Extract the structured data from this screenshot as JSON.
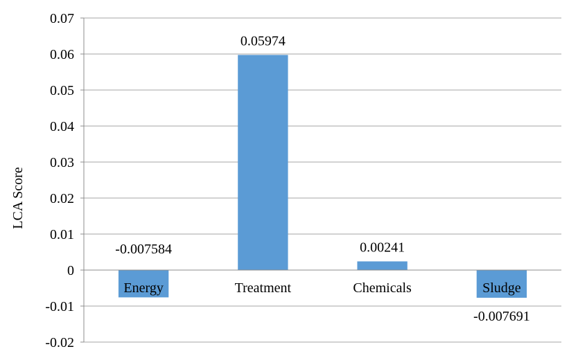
{
  "chart_data": {
    "type": "bar",
    "title": "",
    "xlabel": "",
    "ylabel": "LCA Score",
    "ylim": [
      -0.02,
      0.07
    ],
    "yticks": [
      "0.07",
      "0.06",
      "0.05",
      "0.04",
      "0.03",
      "0.02",
      "0.01",
      "0",
      "-0.01",
      "-0.02"
    ],
    "categories": [
      "Energy",
      "Treatment",
      "Chemicals",
      "Sludge"
    ],
    "values": [
      -0.007584,
      0.05974,
      0.00241,
      -0.007691
    ],
    "data_labels": [
      "-0.007584",
      "0.05974",
      "0.00241",
      "-0.007691"
    ],
    "grid": true,
    "legend": "none",
    "bar_color": "#5b9bd5",
    "grid_color": "#a6a6a6"
  }
}
